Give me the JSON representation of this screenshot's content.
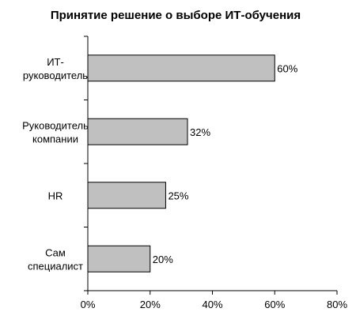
{
  "chart_data": {
    "type": "bar",
    "orientation": "horizontal",
    "title": "Принятие решение о выборе ИТ-обучения",
    "categories": [
      [
        "ИТ-",
        "руководитель"
      ],
      [
        "Руководитель",
        "компании"
      ],
      [
        "HR"
      ],
      [
        "Сам",
        "специалист"
      ]
    ],
    "values": [
      60,
      32,
      25,
      20
    ],
    "data_labels": [
      "60%",
      "32%",
      "25%",
      "20%"
    ],
    "xlim": [
      0,
      80
    ],
    "x_ticks": [
      0,
      20,
      40,
      60,
      80
    ],
    "x_tick_labels": [
      "0%",
      "20%",
      "40%",
      "60%",
      "80%"
    ],
    "xlabel": "",
    "ylabel": "",
    "grid": false,
    "legend": "none",
    "bar_color": "#c0c0c0",
    "bar_edge_color": "#000000"
  }
}
